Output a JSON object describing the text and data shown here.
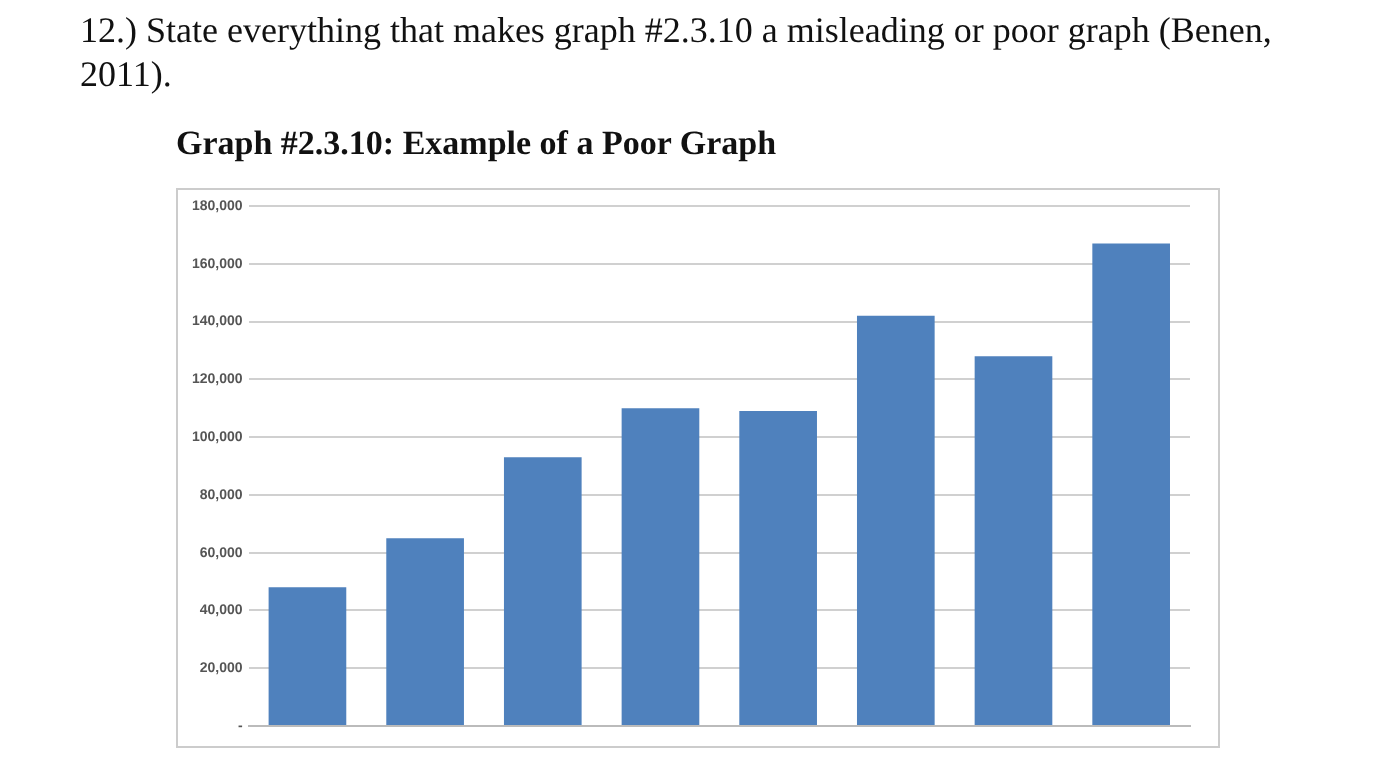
{
  "chart_data": {
    "type": "bar",
    "title": "12.)  State everything that makes graph #2.3.10 a misleading or poor graph (Benen, 2011).",
    "subtitle": "Graph #2.3.10: Example of a Poor Graph",
    "categories": [
      null,
      null,
      null,
      null,
      null,
      null,
      null,
      null
    ],
    "values": [
      48000,
      65000,
      93000,
      110000,
      109000,
      142000,
      128000,
      167000
    ],
    "color": "#4f81bd",
    "ylim": [
      0,
      180000
    ],
    "yticks": [
      {
        "value": 0,
        "label": "-"
      },
      {
        "value": 20000,
        "label": "20,000"
      },
      {
        "value": 40000,
        "label": "40,000"
      },
      {
        "value": 60000,
        "label": "60,000"
      },
      {
        "value": 80000,
        "label": "80,000"
      },
      {
        "value": 100000,
        "label": "100,000"
      },
      {
        "value": 120000,
        "label": "120,000"
      },
      {
        "value": 140000,
        "label": "140,000"
      },
      {
        "value": 160000,
        "label": "160,000"
      },
      {
        "value": 180000,
        "label": "180,000"
      }
    ],
    "grid": "y",
    "tick_labels": "y"
  }
}
